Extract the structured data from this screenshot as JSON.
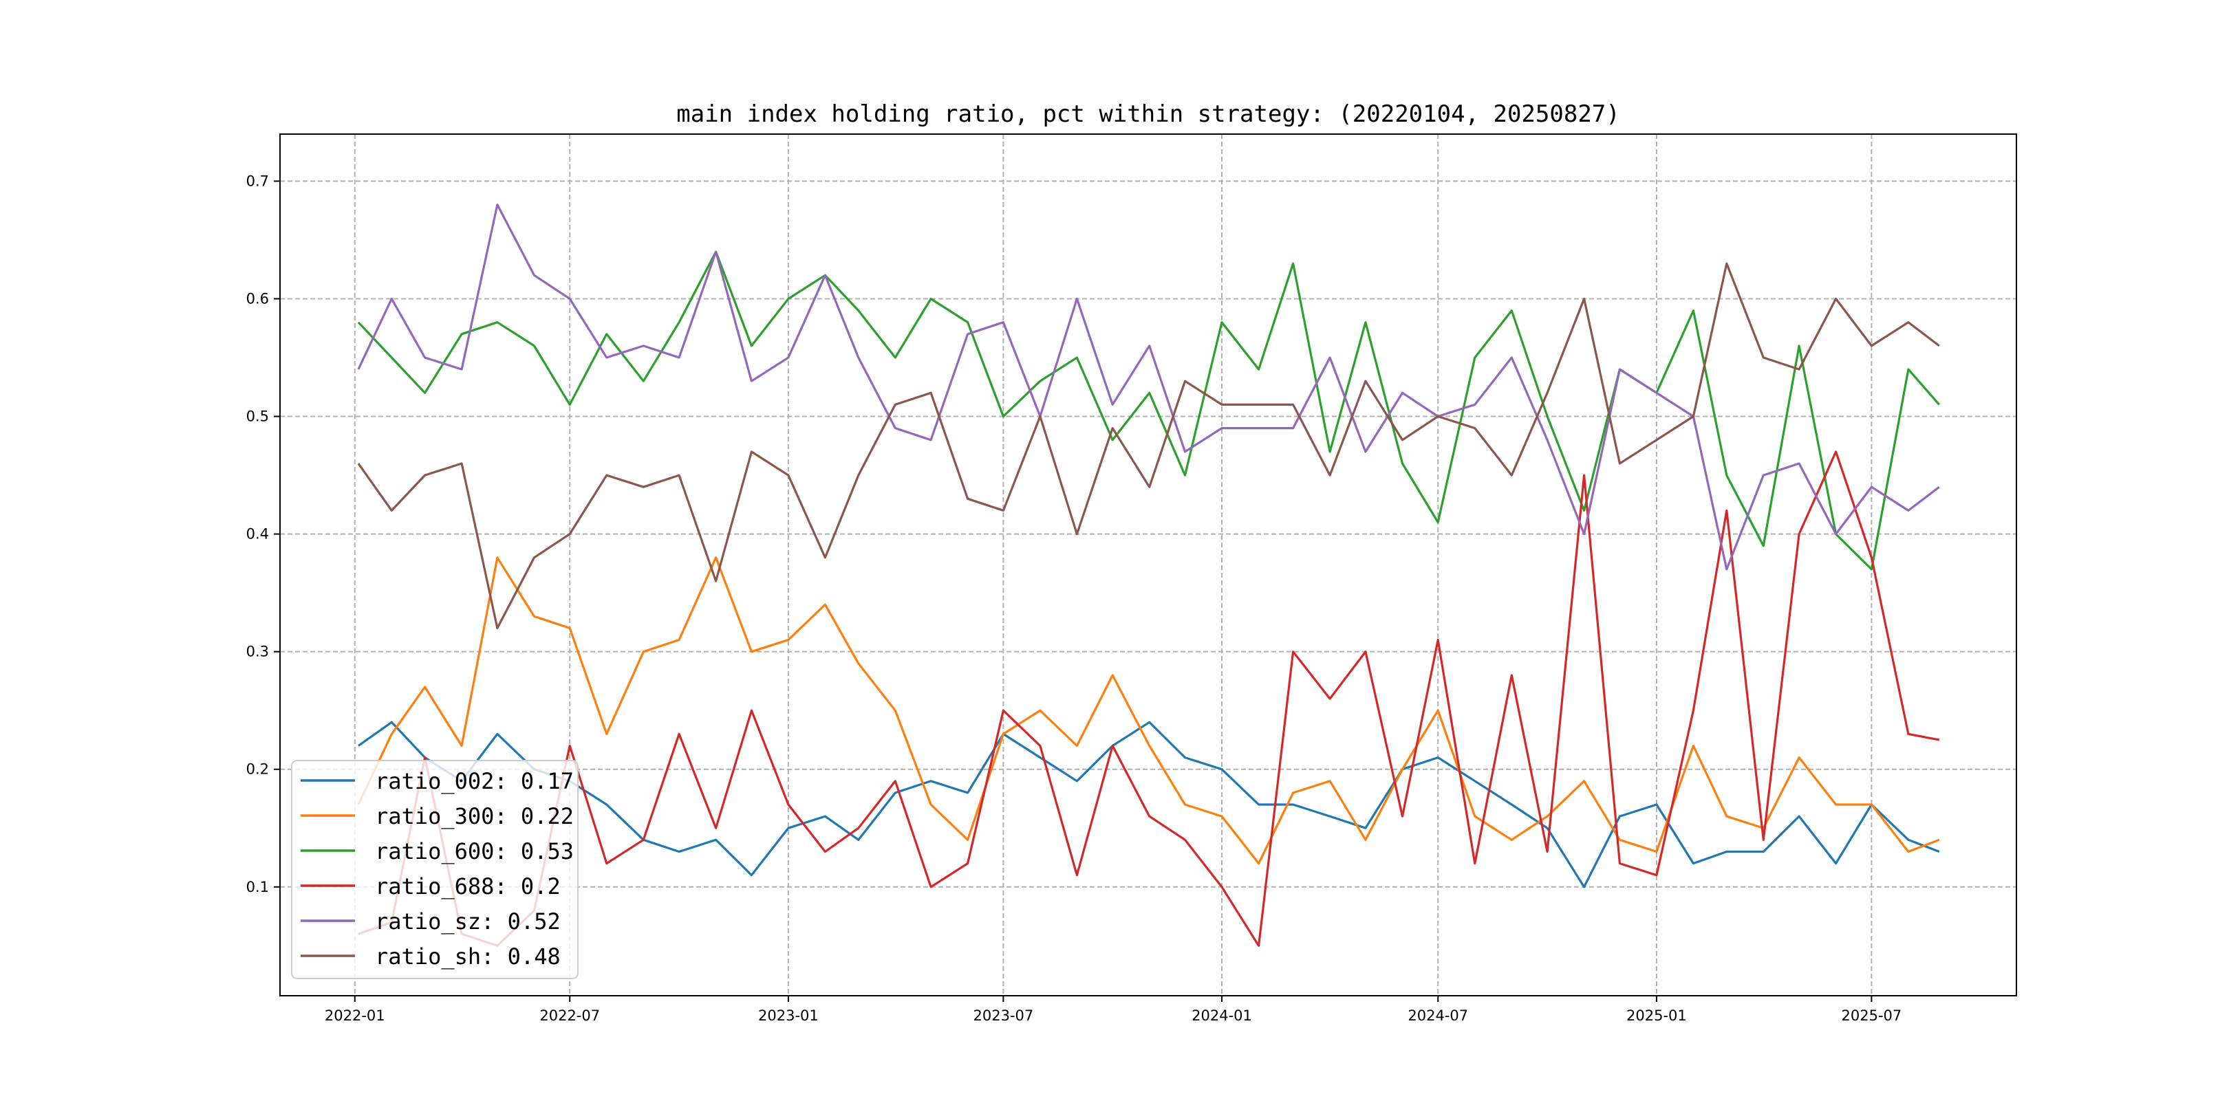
{
  "chart_data": {
    "type": "line",
    "title": "main index holding ratio, pct within strategy: (20220104, 20250827)",
    "xlabel": "",
    "ylabel": "",
    "xlim": [
      "2021-10-30",
      "2025-10-31"
    ],
    "ylim": [
      0.0075,
      0.74
    ],
    "grid": true,
    "legend_position": "lower-left",
    "x_ticks": [
      "2022-01",
      "2022-07",
      "2023-01",
      "2023-07",
      "2024-01",
      "2024-07",
      "2025-01",
      "2025-07"
    ],
    "y_ticks": [
      "0.1",
      "0.2",
      "0.3",
      "0.4",
      "0.5",
      "0.6",
      "0.7"
    ],
    "x": [
      "2022-01-04",
      "2022-02-01",
      "2022-03-01",
      "2022-04-01",
      "2022-05-01",
      "2022-06-01",
      "2022-07-01",
      "2022-08-01",
      "2022-09-01",
      "2022-10-01",
      "2022-11-01",
      "2022-12-01",
      "2023-01-01",
      "2023-02-01",
      "2023-03-01",
      "2023-04-01",
      "2023-05-01",
      "2023-06-01",
      "2023-07-01",
      "2023-08-01",
      "2023-09-01",
      "2023-10-01",
      "2023-11-01",
      "2023-12-01",
      "2024-01-01",
      "2024-02-01",
      "2024-03-01",
      "2024-04-01",
      "2024-05-01",
      "2024-06-01",
      "2024-07-01",
      "2024-08-01",
      "2024-09-01",
      "2024-10-01",
      "2024-11-01",
      "2024-12-01",
      "2025-01-01",
      "2025-02-01",
      "2025-03-01",
      "2025-04-01",
      "2025-05-01",
      "2025-06-01",
      "2025-07-01",
      "2025-08-01",
      "2025-08-27"
    ],
    "series": [
      {
        "name": "ratio_002",
        "legend": "ratio_002: 0.17",
        "color": "#1f77b4",
        "values": [
          0.22,
          0.24,
          0.21,
          0.19,
          0.23,
          0.2,
          0.19,
          0.17,
          0.14,
          0.13,
          0.14,
          0.11,
          0.15,
          0.16,
          0.14,
          0.18,
          0.19,
          0.18,
          0.23,
          0.21,
          0.19,
          0.22,
          0.24,
          0.21,
          0.2,
          0.17,
          0.17,
          0.16,
          0.15,
          0.2,
          0.21,
          0.19,
          0.17,
          0.15,
          0.1,
          0.16,
          0.17,
          0.12,
          0.13,
          0.13,
          0.16,
          0.12,
          0.17,
          0.14,
          0.13
        ]
      },
      {
        "name": "ratio_300",
        "legend": "ratio_300: 0.22",
        "color": "#ff7f0e",
        "values": [
          0.17,
          0.23,
          0.27,
          0.22,
          0.38,
          0.33,
          0.32,
          0.23,
          0.3,
          0.31,
          0.38,
          0.3,
          0.31,
          0.34,
          0.29,
          0.25,
          0.17,
          0.14,
          0.23,
          0.25,
          0.22,
          0.28,
          0.22,
          0.17,
          0.16,
          0.12,
          0.18,
          0.19,
          0.14,
          0.2,
          0.25,
          0.16,
          0.14,
          0.16,
          0.19,
          0.14,
          0.13,
          0.22,
          0.16,
          0.15,
          0.21,
          0.17,
          0.17,
          0.13,
          0.14
        ]
      },
      {
        "name": "ratio_600",
        "legend": "ratio_600: 0.53",
        "color": "#2ca02c",
        "values": [
          0.58,
          0.55,
          0.52,
          0.57,
          0.58,
          0.56,
          0.51,
          0.57,
          0.53,
          0.58,
          0.64,
          0.56,
          0.6,
          0.62,
          0.59,
          0.55,
          0.6,
          0.58,
          0.5,
          0.53,
          0.55,
          0.48,
          0.52,
          0.45,
          0.58,
          0.54,
          0.63,
          0.47,
          0.58,
          0.46,
          0.41,
          0.55,
          0.59,
          0.5,
          0.42,
          0.54,
          0.52,
          0.59,
          0.45,
          0.39,
          0.56,
          0.4,
          0.37,
          0.54,
          0.51
        ]
      },
      {
        "name": "ratio_688",
        "legend": "ratio_688: 0.2",
        "color": "#d62728",
        "values": [
          0.06,
          0.07,
          0.21,
          0.06,
          0.05,
          0.08,
          0.22,
          0.12,
          0.14,
          0.23,
          0.15,
          0.25,
          0.17,
          0.13,
          0.15,
          0.19,
          0.1,
          0.12,
          0.25,
          0.22,
          0.11,
          0.22,
          0.16,
          0.14,
          0.1,
          0.05,
          0.3,
          0.26,
          0.3,
          0.16,
          0.31,
          0.12,
          0.28,
          0.13,
          0.45,
          0.12,
          0.11,
          0.25,
          0.42,
          0.14,
          0.4,
          0.47,
          0.38,
          0.23,
          0.225
        ]
      },
      {
        "name": "ratio_sz",
        "legend": "ratio_sz: 0.52",
        "color": "#9467bd",
        "values": [
          0.54,
          0.6,
          0.55,
          0.54,
          0.68,
          0.62,
          0.6,
          0.55,
          0.56,
          0.55,
          0.64,
          0.53,
          0.55,
          0.62,
          0.55,
          0.49,
          0.48,
          0.57,
          0.58,
          0.5,
          0.6,
          0.51,
          0.56,
          0.47,
          0.49,
          0.49,
          0.49,
          0.55,
          0.47,
          0.52,
          0.5,
          0.51,
          0.55,
          0.48,
          0.4,
          0.54,
          0.52,
          0.5,
          0.37,
          0.45,
          0.46,
          0.4,
          0.44,
          0.42,
          0.44
        ]
      },
      {
        "name": "ratio_sh",
        "legend": "ratio_sh: 0.48",
        "color": "#8c564b",
        "values": [
          0.46,
          0.42,
          0.45,
          0.46,
          0.32,
          0.38,
          0.4,
          0.45,
          0.44,
          0.45,
          0.36,
          0.47,
          0.45,
          0.38,
          0.45,
          0.51,
          0.52,
          0.43,
          0.42,
          0.5,
          0.4,
          0.49,
          0.44,
          0.53,
          0.51,
          0.51,
          0.51,
          0.45,
          0.53,
          0.48,
          0.5,
          0.49,
          0.45,
          0.52,
          0.6,
          0.46,
          0.48,
          0.5,
          0.63,
          0.55,
          0.54,
          0.6,
          0.56,
          0.58,
          0.56
        ]
      }
    ]
  }
}
